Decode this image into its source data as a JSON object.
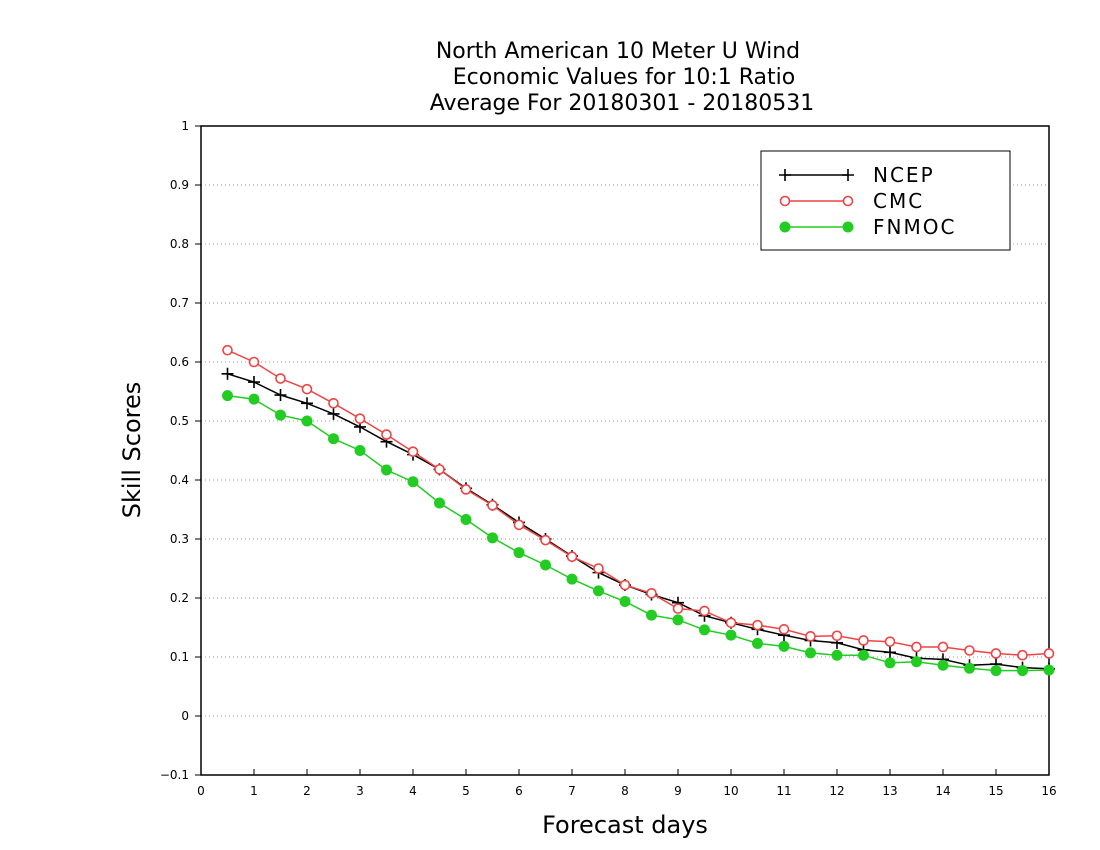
{
  "chart_data": {
    "type": "line",
    "title": [
      "North American 10 Meter U Wind",
      "Economic Values for 10:1 Ratio",
      "Average For 20180301 - 20180531"
    ],
    "xlabel": "Forecast days",
    "ylabel": "Skill Scores",
    "xlim": [
      0,
      16
    ],
    "ylim": [
      -0.1,
      1
    ],
    "xticks": [
      "0",
      "1",
      "2",
      "3",
      "4",
      "5",
      "6",
      "7",
      "8",
      "9",
      "10",
      "11",
      "12",
      "13",
      "14",
      "15",
      "16"
    ],
    "yticks": [
      "−0.1",
      "0",
      "0.1",
      "0.2",
      "0.3",
      "0.4",
      "0.5",
      "0.6",
      "0.7",
      "0.8",
      "0.9",
      "1"
    ],
    "ytick_values": [
      -0.1,
      0,
      0.1,
      0.2,
      0.3,
      0.4,
      0.5,
      0.6,
      0.7,
      0.8,
      0.9,
      1
    ],
    "grid": "horizontal dotted",
    "legend_position": "top-right",
    "x": [
      0.5,
      1,
      1.5,
      2,
      2.5,
      3,
      3.5,
      4,
      4.5,
      5,
      5.5,
      6,
      6.5,
      7,
      7.5,
      8,
      8.5,
      9,
      9.5,
      10,
      10.5,
      11,
      11.5,
      12,
      12.5,
      13,
      13.5,
      14,
      14.5,
      15,
      15.5,
      16
    ],
    "series": [
      {
        "name": "NCEP",
        "color": "#000000",
        "marker": "plus",
        "values": [
          0.58,
          0.566,
          0.544,
          0.53,
          0.512,
          0.49,
          0.465,
          0.443,
          0.418,
          0.386,
          0.358,
          0.328,
          0.3,
          0.271,
          0.243,
          0.222,
          0.206,
          0.192,
          0.17,
          0.158,
          0.147,
          0.137,
          0.128,
          0.124,
          0.112,
          0.108,
          0.098,
          0.096,
          0.086,
          0.088,
          0.082,
          0.08
        ]
      },
      {
        "name": "CMC",
        "color": "#ee4444",
        "marker": "open-circle",
        "values": [
          0.62,
          0.6,
          0.572,
          0.554,
          0.53,
          0.504,
          0.477,
          0.448,
          0.418,
          0.384,
          0.357,
          0.324,
          0.298,
          0.27,
          0.25,
          0.222,
          0.208,
          0.182,
          0.178,
          0.158,
          0.154,
          0.147,
          0.135,
          0.136,
          0.128,
          0.126,
          0.117,
          0.117,
          0.111,
          0.106,
          0.103,
          0.106
        ]
      },
      {
        "name": "FNMOC",
        "color": "#22cc22",
        "marker": "filled-circle",
        "values": [
          0.543,
          0.537,
          0.51,
          0.5,
          0.47,
          0.45,
          0.417,
          0.397,
          0.361,
          0.333,
          0.302,
          0.277,
          0.256,
          0.232,
          0.212,
          0.194,
          0.171,
          0.163,
          0.146,
          0.137,
          0.123,
          0.118,
          0.107,
          0.103,
          0.103,
          0.09,
          0.092,
          0.086,
          0.081,
          0.077,
          0.077,
          0.078
        ]
      }
    ]
  }
}
